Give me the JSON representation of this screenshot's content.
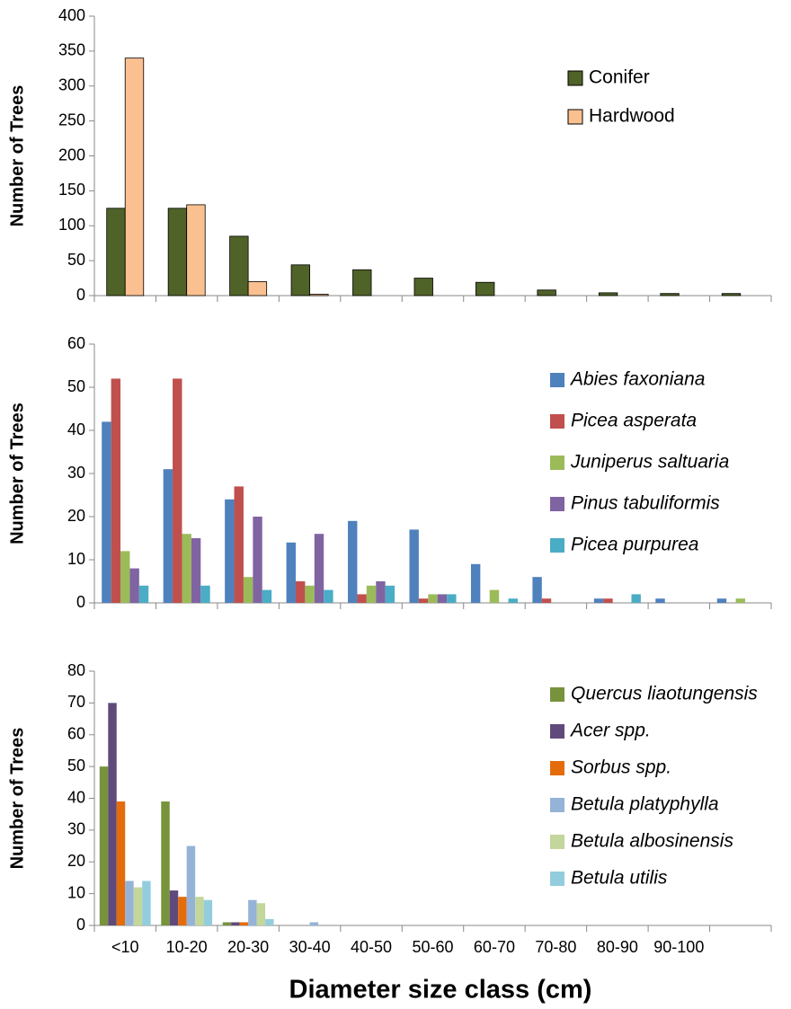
{
  "chart_data": [
    {
      "type": "bar",
      "ylabel": "Number of Trees",
      "ylim": [
        0,
        400
      ],
      "yticks": [
        0,
        50,
        100,
        150,
        200,
        250,
        300,
        350,
        400
      ],
      "series": [
        {
          "name": "Conifer",
          "color": "#4f6228",
          "values": [
            125,
            125,
            85,
            44,
            37,
            25,
            19,
            8,
            4,
            3,
            3
          ]
        },
        {
          "name": "Hardwood",
          "color": "#fac090",
          "values": [
            340,
            130,
            20,
            2,
            0,
            0,
            0,
            0,
            0,
            0,
            0
          ]
        }
      ]
    },
    {
      "type": "bar",
      "ylabel": "Number of Trees",
      "ylim": [
        0,
        60
      ],
      "yticks": [
        0,
        10,
        20,
        30,
        40,
        50,
        60
      ],
      "series": [
        {
          "name": "Abies faxoniana",
          "color": "#4f81bd",
          "values": [
            42,
            31,
            24,
            14,
            19,
            17,
            9,
            6,
            1,
            1,
            1
          ]
        },
        {
          "name": "Picea asperata",
          "color": "#c0504d",
          "values": [
            52,
            52,
            27,
            5,
            2,
            1,
            0,
            1,
            1,
            0,
            0
          ]
        },
        {
          "name": "Juniperus saltuaria",
          "color": "#9bbb59",
          "values": [
            12,
            16,
            6,
            4,
            4,
            2,
            3,
            0,
            0,
            0,
            1
          ]
        },
        {
          "name": "Pinus tabuliformis",
          "color": "#8064a2",
          "values": [
            8,
            15,
            20,
            16,
            5,
            2,
            0,
            0,
            0,
            0,
            0
          ]
        },
        {
          "name": "Picea purpurea",
          "color": "#4bacc6",
          "values": [
            4,
            4,
            3,
            3,
            4,
            2,
            1,
            0,
            2,
            0,
            0
          ]
        }
      ]
    },
    {
      "type": "bar",
      "ylabel": "Number of Trees",
      "xlabel": "Diameter size class (cm)",
      "ylim": [
        0,
        80
      ],
      "yticks": [
        0,
        10,
        20,
        30,
        40,
        50,
        60,
        70,
        80
      ],
      "categories": [
        "<10",
        "10-20",
        "20-30",
        "30-40",
        "40-50",
        "50-60",
        "60-70",
        "70-80",
        "80-90",
        "90-100",
        null
      ],
      "series": [
        {
          "name": "Quercus liaotungensis",
          "color": "#77933c",
          "values": [
            50,
            39,
            1,
            0,
            0,
            0,
            0,
            0,
            0,
            0,
            0
          ]
        },
        {
          "name": "Acer spp.",
          "color": "#604a7b",
          "values": [
            70,
            11,
            1,
            0,
            0,
            0,
            0,
            0,
            0,
            0,
            0
          ]
        },
        {
          "name": "Sorbus spp.",
          "color": "#e46c0a",
          "values": [
            39,
            9,
            1,
            0,
            0,
            0,
            0,
            0,
            0,
            0,
            0
          ]
        },
        {
          "name": "Betula platyphylla",
          "color": "#95b3d7",
          "values": [
            14,
            25,
            8,
            1,
            0,
            0,
            0,
            0,
            0,
            0,
            0
          ]
        },
        {
          "name": "Betula albosinensis",
          "color": "#c3d69b",
          "values": [
            12,
            9,
            7,
            0,
            0,
            0,
            0,
            0,
            0,
            0,
            0
          ]
        },
        {
          "name": "Betula utilis",
          "color": "#93cddd",
          "values": [
            14,
            8,
            2,
            0,
            0,
            0,
            0,
            0,
            0,
            0,
            0
          ]
        }
      ]
    }
  ]
}
